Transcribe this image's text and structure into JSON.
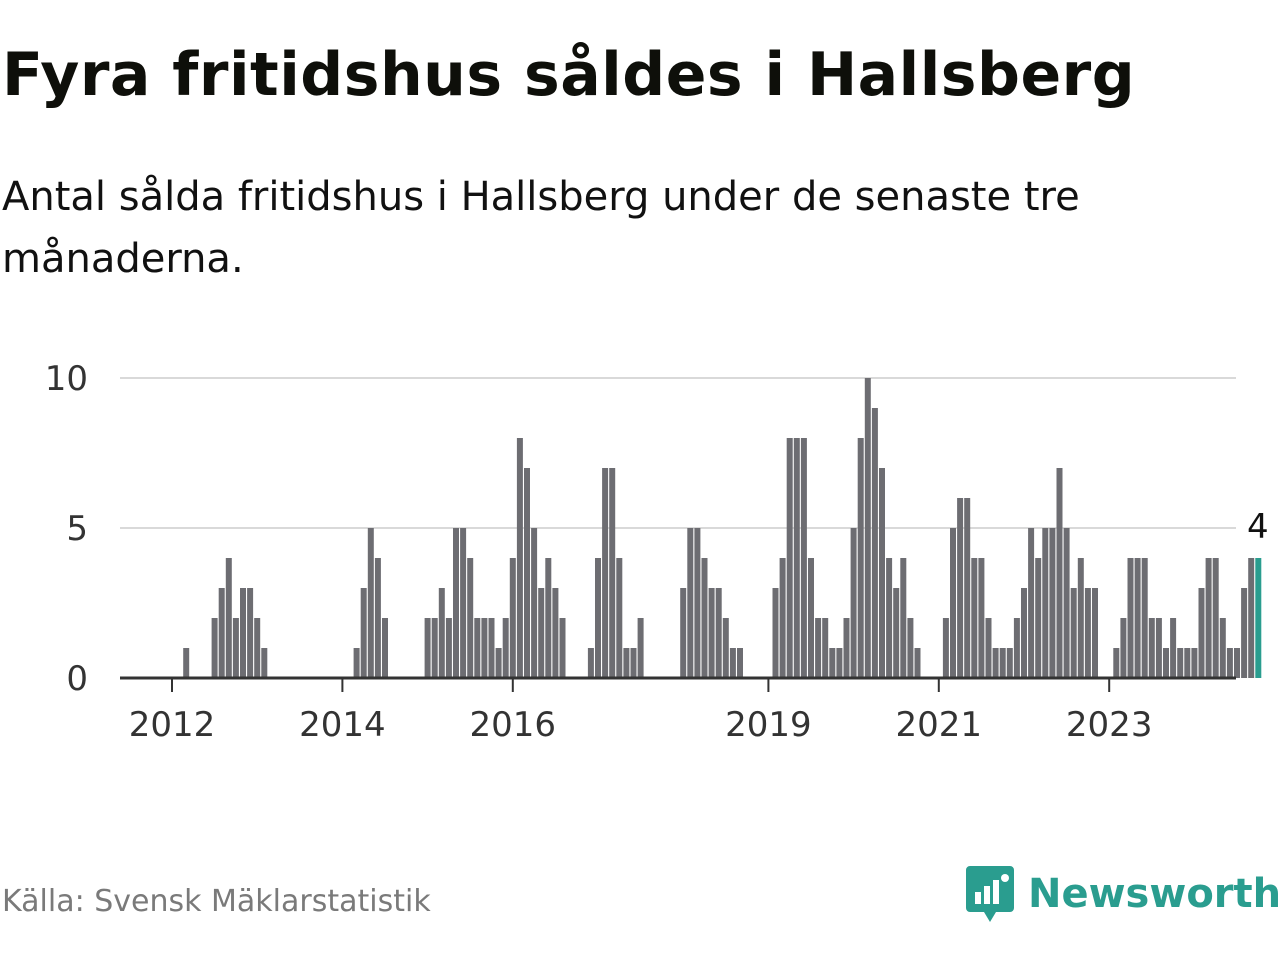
{
  "title": "Fyra fritidshus såldes i Hallsberg",
  "subtitle": "Antal sålda fritidshus i Hallsberg under de senaste tre månaderna.",
  "source": "Källa: Svensk Mäklarstatistik",
  "brand": {
    "name": "Newsworthy",
    "color": "#2a9d8f",
    "icon": "newsworthy-logo-icon"
  },
  "colors": {
    "bar": "#6d6d72",
    "highlight": "#2a9d8f",
    "grid": "#d9d9d9",
    "axis": "#333333"
  },
  "chart_data": {
    "type": "bar",
    "title": "",
    "xlabel": "",
    "ylabel": "",
    "ylim": [
      0,
      10
    ],
    "y_ticks": [
      0,
      5,
      10
    ],
    "x_ticks": [
      "2012",
      "2014",
      "2016",
      "2019",
      "2021",
      "2023"
    ],
    "grid": true,
    "annotation": {
      "text": "4",
      "target": "last bar"
    },
    "series": [
      {
        "values": [
          0,
          0,
          1,
          0,
          0,
          0,
          2,
          3,
          4,
          2,
          3,
          3,
          2,
          1,
          0,
          0,
          0,
          0,
          0,
          0,
          0,
          0,
          0,
          0,
          0,
          0,
          1,
          3,
          5,
          4,
          2,
          0,
          0,
          0,
          0,
          0,
          2,
          2,
          3,
          2,
          5,
          5,
          4,
          2,
          2,
          2,
          1,
          2,
          4,
          8,
          7,
          5,
          3,
          4,
          3,
          2,
          0,
          0,
          0,
          1,
          4,
          7,
          7,
          4,
          1,
          1,
          2,
          0,
          0,
          0,
          0,
          0,
          3,
          5,
          5,
          4,
          3,
          3,
          2,
          1,
          1,
          0,
          0,
          0,
          0,
          3,
          4,
          8,
          8,
          8,
          4,
          2,
          2,
          1,
          1,
          2,
          5,
          8,
          10,
          9,
          7,
          4,
          3,
          4,
          2,
          1,
          0,
          0,
          0,
          2,
          5,
          6,
          6,
          4,
          4,
          2,
          1,
          1,
          1,
          2,
          3,
          5,
          4,
          5,
          5,
          7,
          5,
          3,
          4,
          3,
          3,
          0,
          0,
          1,
          2,
          4,
          4,
          4,
          2,
          2,
          1,
          2,
          1,
          1,
          1,
          3,
          4,
          4,
          2,
          1,
          1,
          3,
          4,
          4
        ]
      }
    ]
  }
}
